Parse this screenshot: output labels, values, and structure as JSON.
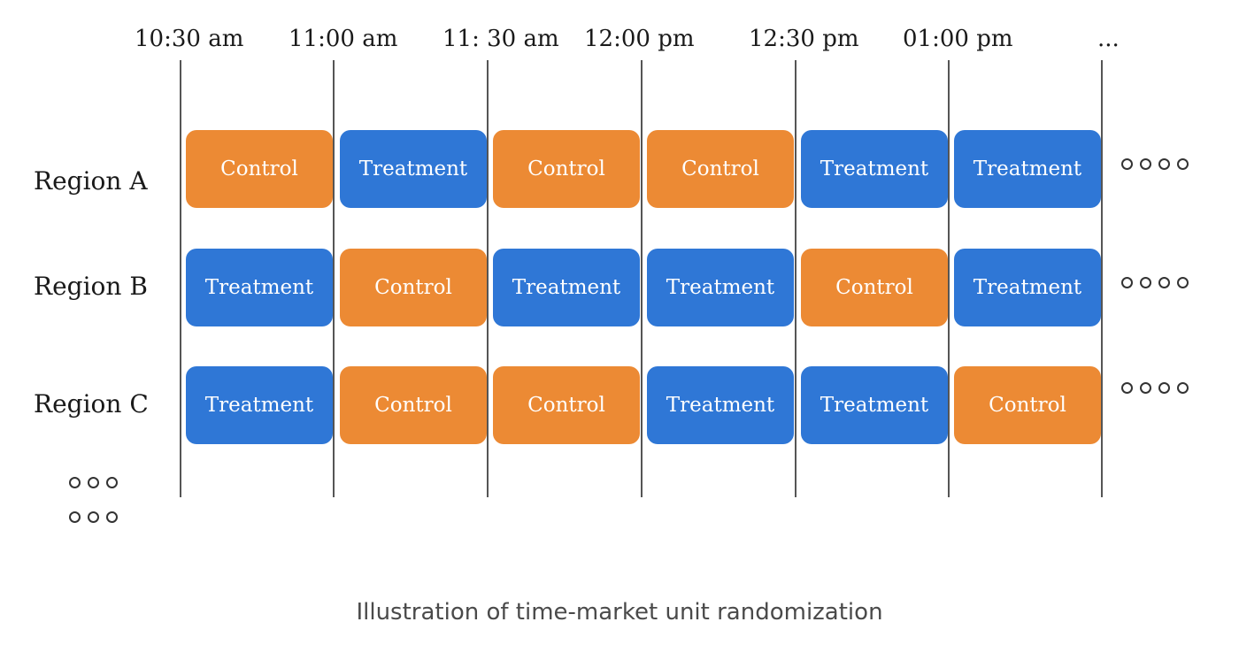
{
  "time_labels": [
    "10:30 am",
    "11:00 am",
    "11: 30 am",
    "12:00 pm",
    "12:30 pm",
    "01:00 pm",
    "..."
  ],
  "regions": [
    {
      "label": "Region A",
      "cells": [
        "Control",
        "Treatment",
        "Control",
        "Control",
        "Treatment",
        "Treatment"
      ]
    },
    {
      "label": "Region B",
      "cells": [
        "Treatment",
        "Control",
        "Treatment",
        "Treatment",
        "Control",
        "Treatment"
      ]
    },
    {
      "label": "Region C",
      "cells": [
        "Treatment",
        "Control",
        "Control",
        "Treatment",
        "Treatment",
        "Control"
      ]
    }
  ],
  "caption": "Illustration of time-market unit randomization",
  "colors": {
    "treatment": "#2f77d6",
    "control": "#ec8a34"
  }
}
